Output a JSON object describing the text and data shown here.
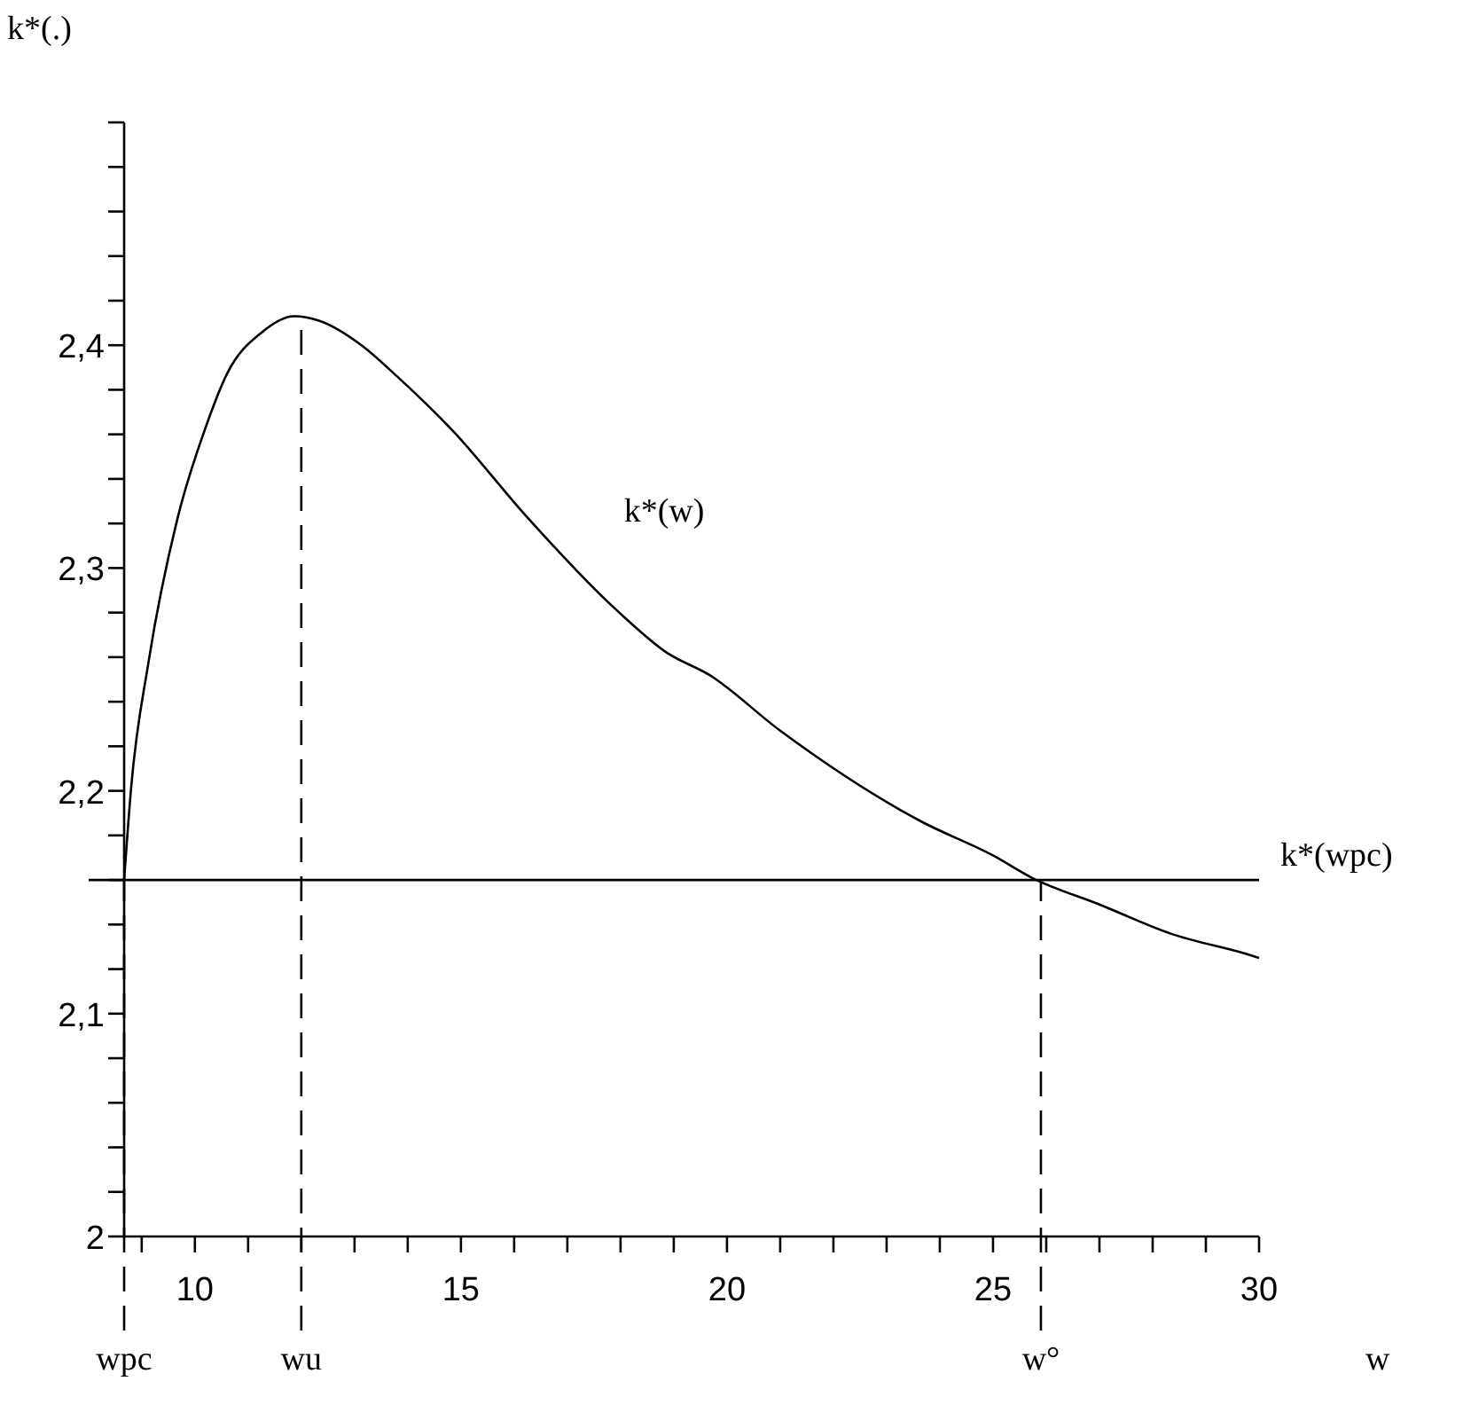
{
  "chart_data": {
    "type": "line",
    "xlabel": "w",
    "ylabel": "k*(.)",
    "xlim": [
      8.67,
      30
    ],
    "ylim": [
      2,
      2.5
    ],
    "xticks": [
      {
        "value": 9,
        "label": null
      },
      10,
      {
        "value": 11,
        "label": null
      },
      {
        "value": 12,
        "label": null
      },
      {
        "value": 13,
        "label": null
      },
      {
        "value": 14,
        "label": null
      },
      15,
      {
        "value": 16,
        "label": null
      },
      {
        "value": 17,
        "label": null
      },
      {
        "value": 18,
        "label": null
      },
      {
        "value": 19,
        "label": null
      },
      20,
      {
        "value": 21,
        "label": null
      },
      {
        "value": 22,
        "label": null
      },
      {
        "value": 23,
        "label": null
      },
      {
        "value": 24,
        "label": null
      },
      25,
      {
        "value": 26,
        "label": null
      },
      {
        "value": 27,
        "label": null
      },
      {
        "value": 28,
        "label": null
      },
      {
        "value": 29,
        "label": null
      },
      30
    ],
    "yticks": [
      2,
      {
        "value": 2.02,
        "label": null
      },
      {
        "value": 2.04,
        "label": null
      },
      {
        "value": 2.06,
        "label": null
      },
      {
        "value": 2.08,
        "label": null
      },
      {
        "value": 2.1,
        "label": "2,1"
      },
      {
        "value": 2.12,
        "label": null
      },
      {
        "value": 2.14,
        "label": null
      },
      {
        "value": 2.16,
        "label": null
      },
      {
        "value": 2.18,
        "label": null
      },
      {
        "value": 2.2,
        "label": "2,2"
      },
      {
        "value": 2.22,
        "label": null
      },
      {
        "value": 2.24,
        "label": null
      },
      {
        "value": 2.26,
        "label": null
      },
      {
        "value": 2.28,
        "label": null
      },
      {
        "value": 2.3,
        "label": "2,3"
      },
      {
        "value": 2.32,
        "label": null
      },
      {
        "value": 2.34,
        "label": null
      },
      {
        "value": 2.36,
        "label": null
      },
      {
        "value": 2.38,
        "label": null
      },
      {
        "value": 2.4,
        "label": "2,4"
      },
      {
        "value": 2.42,
        "label": null
      },
      {
        "value": 2.44,
        "label": null
      },
      {
        "value": 2.46,
        "label": null
      },
      {
        "value": 2.48,
        "label": null
      },
      {
        "value": 2.5,
        "label": null
      }
    ],
    "grid": false,
    "marker": "none",
    "line_style": "solid",
    "series": [
      {
        "name": "k*(w)",
        "color": "#000000",
        "x": [
          8.67,
          8.8,
          9.13,
          9.67,
          10.2,
          10.6,
          11.27,
          11.87,
          12.33,
          13.13,
          13.8,
          14.87,
          16.2,
          17.93,
          18.87,
          19.67,
          21.0,
          23.67,
          25.0,
          25.73,
          27.0,
          28.33,
          29.87,
          30
        ],
        "values": [
          2.16,
          2.201,
          2.258,
          2.322,
          2.363,
          2.387,
          2.406,
          2.413,
          2.411,
          2.4,
          2.386,
          2.361,
          2.324,
          2.281,
          2.262,
          2.252,
          2.227,
          2.186,
          2.171,
          2.161,
          2.149,
          2.136,
          2.126,
          2.125
        ]
      }
    ],
    "ref_lines": [
      {
        "axis": "y",
        "value": 2.16,
        "label": "k*(wpc)",
        "color": "#000000",
        "line_style": "solid"
      },
      {
        "axis": "x",
        "value": 8.67,
        "label": "wpc",
        "color": "#000000",
        "line_style": "dashed"
      },
      {
        "axis": "x",
        "value": 12,
        "label": "wu",
        "color": "#000000",
        "line_style": "dashed"
      },
      {
        "axis": "x",
        "value": 25.9,
        "label": "w°",
        "color": "#000000",
        "line_style": "dashed"
      }
    ]
  }
}
